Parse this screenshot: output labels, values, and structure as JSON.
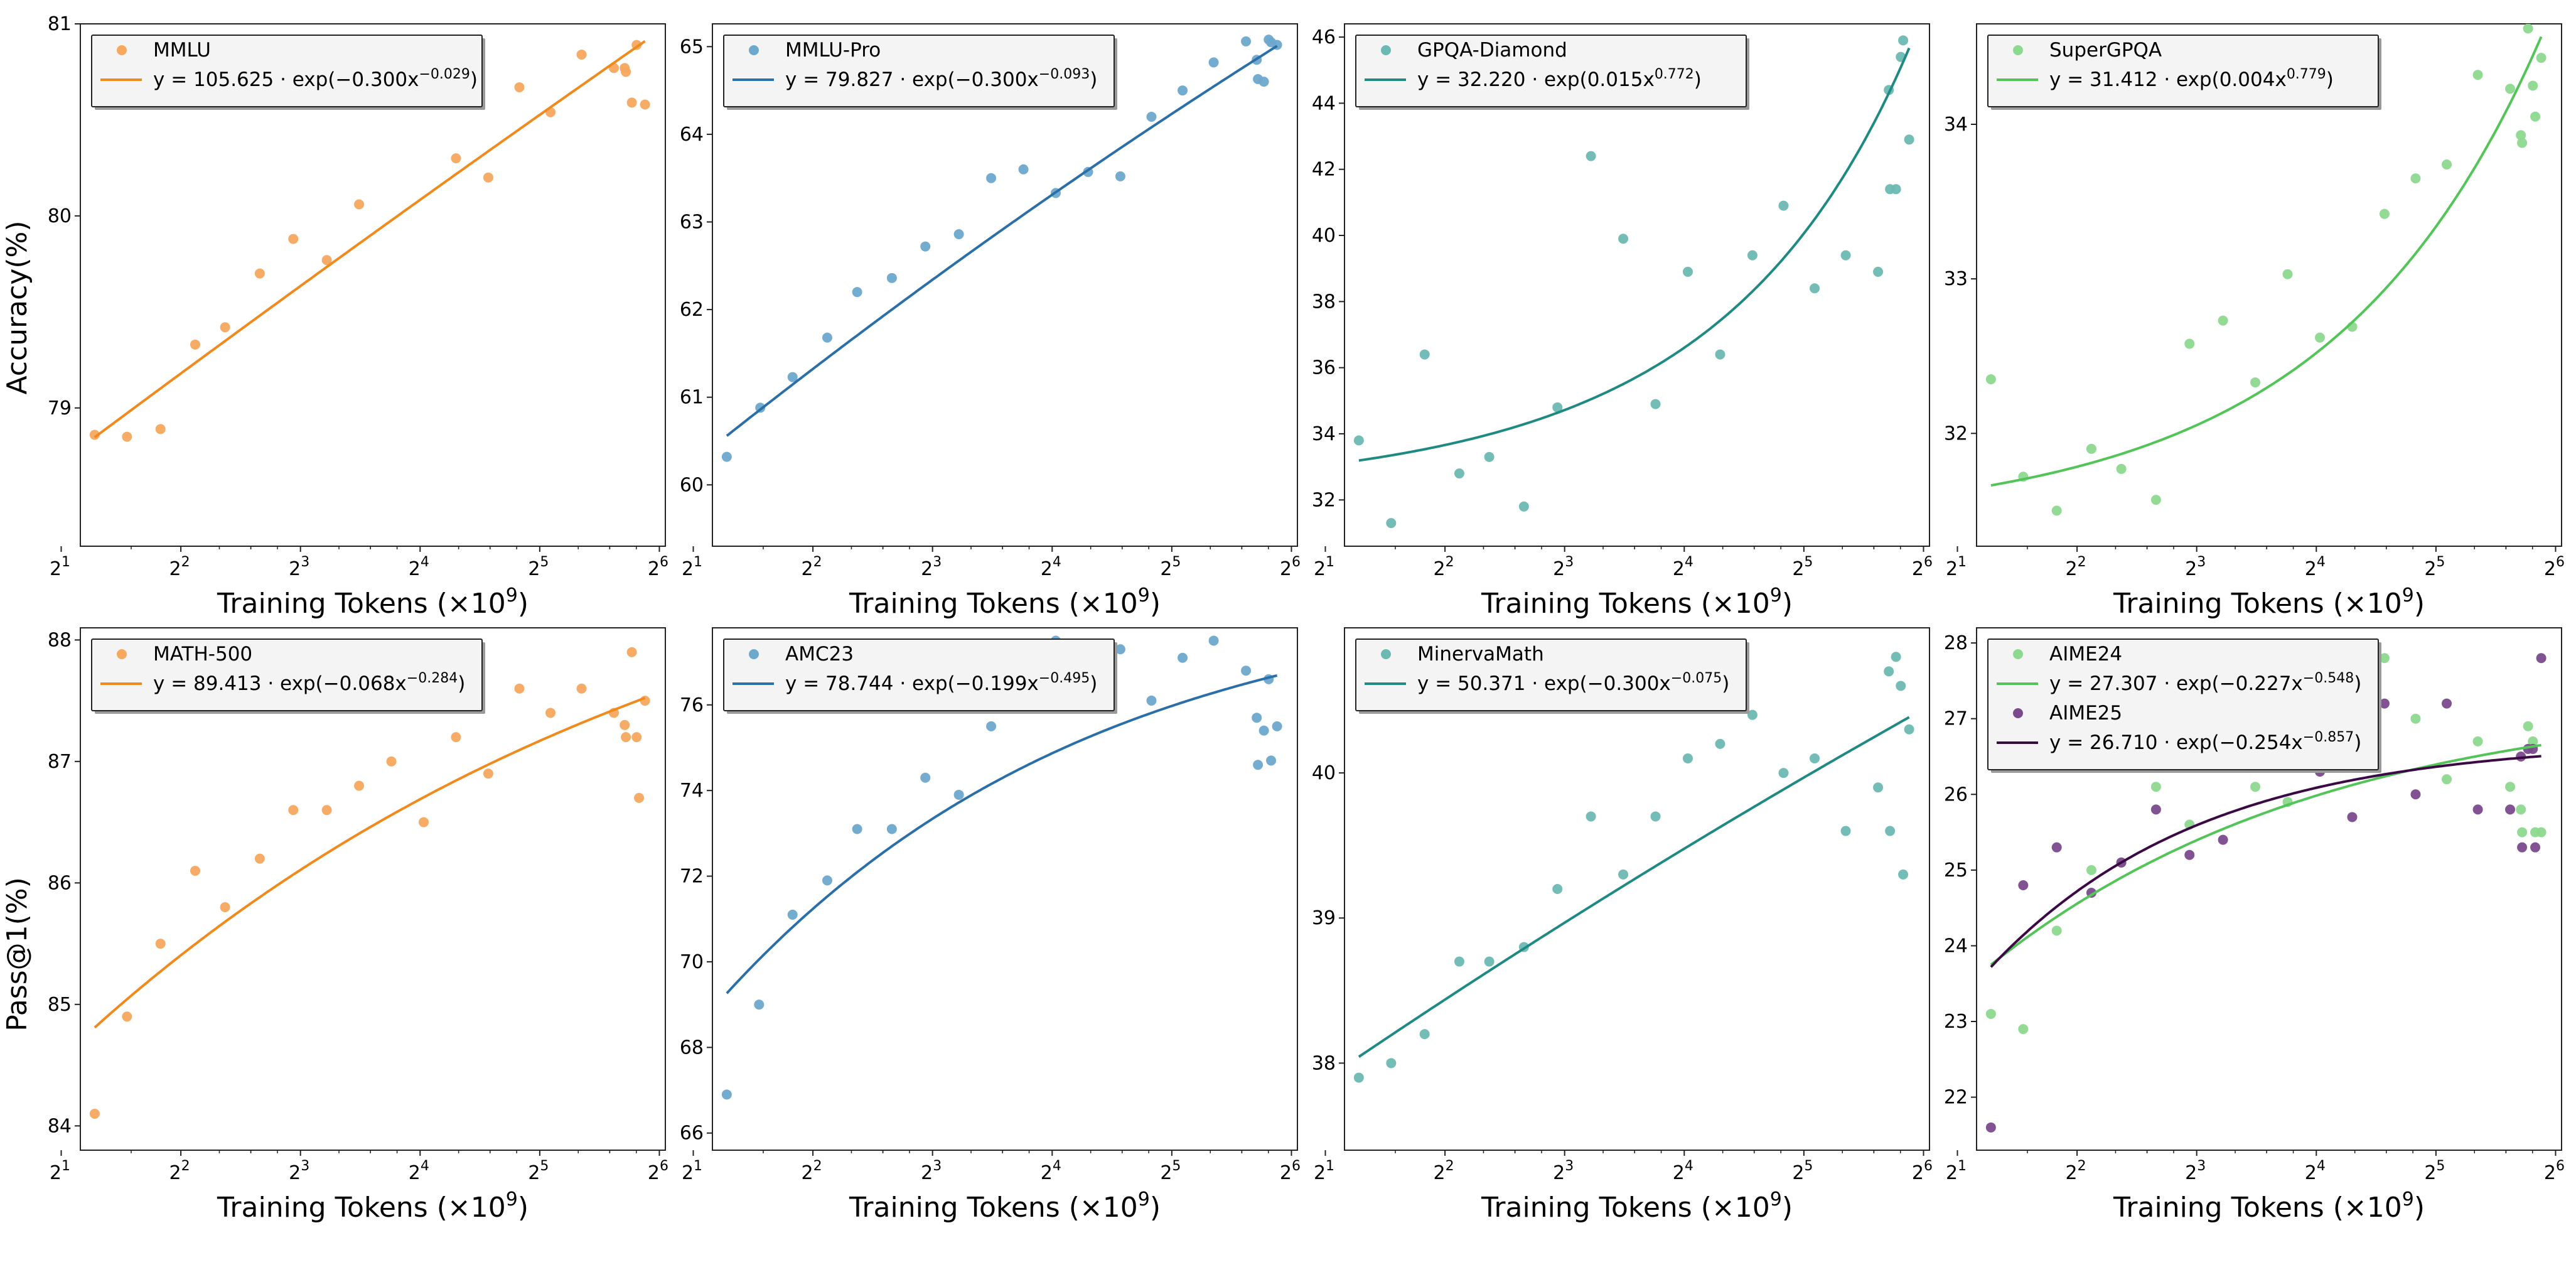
{
  "figure": {
    "row_ylabels": [
      "Accuracy(%)",
      "Pass@1(%)"
    ],
    "xlabel": "Training Tokens (×10",
    "xlabel_exp": "9",
    "xlabel_close": ")",
    "x_tick_base": "2",
    "x_tick_exponents": [
      "1",
      "2",
      "3",
      "4",
      "5",
      "6"
    ]
  },
  "chart_data": [
    {
      "type": "scatter",
      "xscale": "log2",
      "xlim": [
        1.16,
        6.05
      ],
      "ylim": [
        78.28,
        81.0
      ],
      "yticks": [
        79,
        80,
        81
      ],
      "series": [
        {
          "name": "MMLU",
          "color": "#F5A85E",
          "fit_color": "#F08A1C",
          "fit": {
            "a": 105.625,
            "b": -0.3,
            "c": -0.029,
            "label": "y = 105.625 · exp(−0.300x^{−0.029})"
          },
          "x": [
            1.28,
            1.55,
            1.83,
            2.12,
            2.37,
            2.66,
            2.94,
            3.22,
            3.49,
            3.76,
            4.03,
            4.3,
            4.57,
            4.83,
            5.09,
            5.35,
            5.62,
            5.88,
            5.77,
            5.81,
            5.71,
            5.72
          ],
          "y": [
            78.86,
            78.85,
            78.89,
            79.33,
            79.42,
            79.7,
            79.88,
            79.77,
            80.06,
            80.61,
            80.83,
            80.3,
            80.2,
            80.67,
            80.54,
            80.84,
            80.77,
            80.58,
            80.59,
            80.89,
            80.77,
            80.75
          ]
        }
      ]
    },
    {
      "type": "scatter",
      "xscale": "log2",
      "xlim": [
        1.16,
        6.05
      ],
      "ylim": [
        59.3,
        65.26
      ],
      "yticks": [
        60,
        61,
        62,
        63,
        64,
        65
      ],
      "series": [
        {
          "name": "MMLU-Pro",
          "color": "#6DA8CD",
          "fit_color": "#2A6FA7",
          "fit": {
            "a": 79.827,
            "b": -0.3,
            "c": -0.093,
            "label": "y = 79.827 · exp(−0.300x^{−0.093})"
          },
          "x": [
            1.28,
            1.56,
            1.83,
            2.12,
            2.37,
            2.66,
            2.94,
            3.22,
            3.49,
            3.76,
            4.03,
            4.3,
            4.57,
            4.83,
            5.09,
            5.35,
            5.62,
            5.88,
            5.77,
            5.81,
            5.71,
            5.72,
            5.83
          ],
          "y": [
            60.32,
            60.88,
            61.23,
            61.68,
            62.2,
            62.36,
            62.72,
            62.86,
            63.5,
            63.6,
            63.33,
            63.57,
            63.52,
            64.2,
            64.5,
            64.82,
            65.06,
            65.02,
            64.6,
            65.08,
            64.85,
            64.63,
            65.05
          ]
        }
      ]
    },
    {
      "type": "scatter",
      "xscale": "log2",
      "xlim": [
        1.16,
        6.05
      ],
      "ylim": [
        30.6,
        46.4
      ],
      "yticks": [
        32,
        34,
        36,
        38,
        40,
        42,
        44,
        46
      ],
      "series": [
        {
          "name": "GPQA-Diamond",
          "color": "#6BB9B2",
          "fit_color": "#1F8A82",
          "fit": {
            "a": 32.22,
            "b": 0.015,
            "c": 0.772,
            "label": "y = 32.220 · exp(0.015x^{0.772})"
          },
          "x": [
            1.28,
            1.55,
            1.83,
            2.12,
            2.37,
            2.66,
            2.94,
            3.22,
            3.49,
            3.76,
            4.03,
            4.3,
            4.57,
            4.83,
            5.09,
            5.35,
            5.62,
            5.88,
            5.77,
            5.81,
            5.71,
            5.72,
            5.83
          ],
          "y": [
            33.8,
            31.3,
            36.4,
            32.8,
            33.3,
            31.8,
            34.8,
            42.4,
            39.9,
            34.9,
            38.9,
            36.4,
            39.4,
            40.9,
            38.4,
            39.4,
            38.9,
            42.9,
            41.4,
            45.4,
            44.4,
            41.4,
            45.9
          ]
        }
      ]
    },
    {
      "type": "scatter",
      "xscale": "log2",
      "xlim": [
        1.16,
        6.05
      ],
      "ylim": [
        31.27,
        34.65
      ],
      "yticks": [
        32,
        33,
        34
      ],
      "series": [
        {
          "name": "SuperGPQA",
          "color": "#8DD98F",
          "fit_color": "#52C458",
          "fit": {
            "a": 31.412,
            "b": 0.004,
            "c": 0.779,
            "label": "y = 31.412 · exp(0.004x^{0.779})"
          },
          "x": [
            1.28,
            1.55,
            1.83,
            2.12,
            2.37,
            2.66,
            2.94,
            3.22,
            3.49,
            3.76,
            4.03,
            4.3,
            4.57,
            4.83,
            5.09,
            5.35,
            5.62,
            5.88,
            5.77,
            5.81,
            5.71,
            5.72,
            5.83
          ],
          "y": [
            32.35,
            31.72,
            31.5,
            31.9,
            31.77,
            31.57,
            32.58,
            32.73,
            32.33,
            33.03,
            32.62,
            32.69,
            33.42,
            33.65,
            33.74,
            34.32,
            34.23,
            34.43,
            34.62,
            34.25,
            33.93,
            33.88,
            34.05
          ]
        }
      ]
    },
    {
      "type": "scatter",
      "xscale": "log2",
      "xlim": [
        1.16,
        6.05
      ],
      "ylim": [
        83.8,
        88.1
      ],
      "yticks": [
        84,
        85,
        86,
        87,
        88
      ],
      "series": [
        {
          "name": "MATH-500",
          "color": "#F5A85E",
          "fit_color": "#F08A1C",
          "fit": {
            "a": 89.413,
            "b": -0.068,
            "c": -0.284,
            "label": "y = 89.413 · exp(−0.068x^{−0.284})"
          },
          "x": [
            1.28,
            1.55,
            1.83,
            2.12,
            2.37,
            2.66,
            2.94,
            3.22,
            3.49,
            3.76,
            4.03,
            4.3,
            4.57,
            4.83,
            5.09,
            5.35,
            5.62,
            5.88,
            5.77,
            5.81,
            5.71,
            5.72,
            5.83
          ],
          "y": [
            84.1,
            84.9,
            85.5,
            86.1,
            85.8,
            86.2,
            86.6,
            86.6,
            86.8,
            87.0,
            86.5,
            87.2,
            86.9,
            87.6,
            87.4,
            87.6,
            87.4,
            87.5,
            87.9,
            87.2,
            87.3,
            87.2,
            86.7
          ]
        }
      ]
    },
    {
      "type": "scatter",
      "xscale": "log2",
      "xlim": [
        1.16,
        6.05
      ],
      "ylim": [
        65.6,
        77.8
      ],
      "yticks": [
        66,
        68,
        70,
        72,
        74,
        76
      ],
      "series": [
        {
          "name": "AMC23",
          "color": "#6DA8CD",
          "fit_color": "#2A6FA7",
          "fit": {
            "a": 78.744,
            "b": -0.199,
            "c": -0.495,
            "label": "y = 78.744 · exp(−0.199x^{−0.495})"
          },
          "x": [
            1.28,
            1.55,
            1.83,
            2.12,
            2.37,
            2.66,
            2.94,
            3.22,
            3.49,
            3.76,
            4.03,
            4.3,
            4.57,
            4.83,
            5.09,
            5.35,
            5.62,
            5.88,
            5.77,
            5.81,
            5.71,
            5.72,
            5.83
          ],
          "y": [
            66.9,
            69.0,
            71.1,
            71.9,
            73.1,
            73.1,
            74.3,
            73.9,
            75.5,
            76.4,
            77.5,
            76.3,
            77.3,
            76.1,
            77.1,
            77.5,
            76.8,
            75.5,
            75.4,
            76.6,
            75.7,
            74.6,
            74.7
          ]
        }
      ]
    },
    {
      "type": "scatter",
      "xscale": "log2",
      "xlim": [
        1.16,
        6.05
      ],
      "ylim": [
        37.4,
        41.0
      ],
      "yticks": [
        38,
        39,
        40
      ],
      "series": [
        {
          "name": "MinervaMath",
          "color": "#6BB9B2",
          "fit_color": "#1F8A82",
          "fit": {
            "a": 50.371,
            "b": -0.3,
            "c": -0.075,
            "label": "y = 50.371 · exp(−0.300x^{−0.075})"
          },
          "x": [
            1.28,
            1.55,
            1.83,
            2.12,
            2.37,
            2.66,
            2.94,
            3.22,
            3.49,
            3.76,
            4.03,
            4.3,
            4.57,
            4.83,
            5.09,
            5.35,
            5.62,
            5.88,
            5.77,
            5.81,
            5.71,
            5.72,
            5.83
          ],
          "y": [
            37.9,
            38.0,
            38.2,
            38.7,
            38.7,
            38.8,
            39.2,
            39.7,
            39.3,
            39.7,
            40.1,
            40.2,
            40.4,
            40.0,
            40.1,
            39.6,
            39.9,
            40.3,
            40.8,
            40.6,
            40.7,
            39.6,
            39.3
          ]
        }
      ]
    },
    {
      "type": "scatter",
      "xscale": "log2",
      "xlim": [
        1.16,
        6.05
      ],
      "ylim": [
        21.3,
        28.2
      ],
      "yticks": [
        22,
        23,
        24,
        25,
        26,
        27,
        28
      ],
      "series": [
        {
          "name": "AIME24",
          "color": "#8DD98F",
          "fit_color": "#52C458",
          "fit": {
            "a": 27.307,
            "b": -0.227,
            "c": -0.548,
            "label": "y = 27.307 · exp(−0.227x^{−0.548})"
          },
          "x": [
            1.28,
            1.55,
            1.83,
            2.12,
            2.37,
            2.66,
            2.94,
            3.22,
            3.49,
            3.76,
            4.03,
            4.3,
            4.57,
            4.83,
            5.09,
            5.35,
            5.62,
            5.88,
            5.77,
            5.81,
            5.71,
            5.72,
            5.83
          ],
          "y": [
            23.1,
            22.9,
            24.2,
            25.0,
            25.1,
            26.1,
            25.6,
            26.7,
            26.1,
            25.9,
            27.9,
            27.1,
            27.8,
            27.0,
            26.2,
            26.7,
            26.1,
            25.5,
            26.9,
            26.7,
            25.8,
            25.5,
            25.5
          ]
        },
        {
          "name": "AIME25",
          "color": "#7A4A8C",
          "fit_color": "#3B0A45",
          "fit": {
            "a": 26.71,
            "b": -0.254,
            "c": -0.857,
            "label": "y = 26.710 · exp(−0.254x^{−0.857})"
          },
          "x": [
            1.28,
            1.55,
            1.83,
            2.12,
            2.37,
            2.66,
            2.94,
            3.22,
            3.49,
            3.76,
            4.03,
            4.3,
            4.57,
            4.83,
            5.09,
            5.35,
            5.62,
            5.88,
            5.77,
            5.81,
            5.71,
            5.72,
            5.83
          ],
          "y": [
            21.6,
            24.8,
            25.3,
            24.7,
            25.1,
            25.8,
            25.2,
            25.4,
            26.7,
            26.4,
            26.3,
            25.7,
            27.2,
            26.0,
            27.2,
            25.8,
            25.8,
            27.8,
            26.6,
            26.6,
            26.5,
            25.3,
            25.3
          ]
        }
      ]
    }
  ]
}
